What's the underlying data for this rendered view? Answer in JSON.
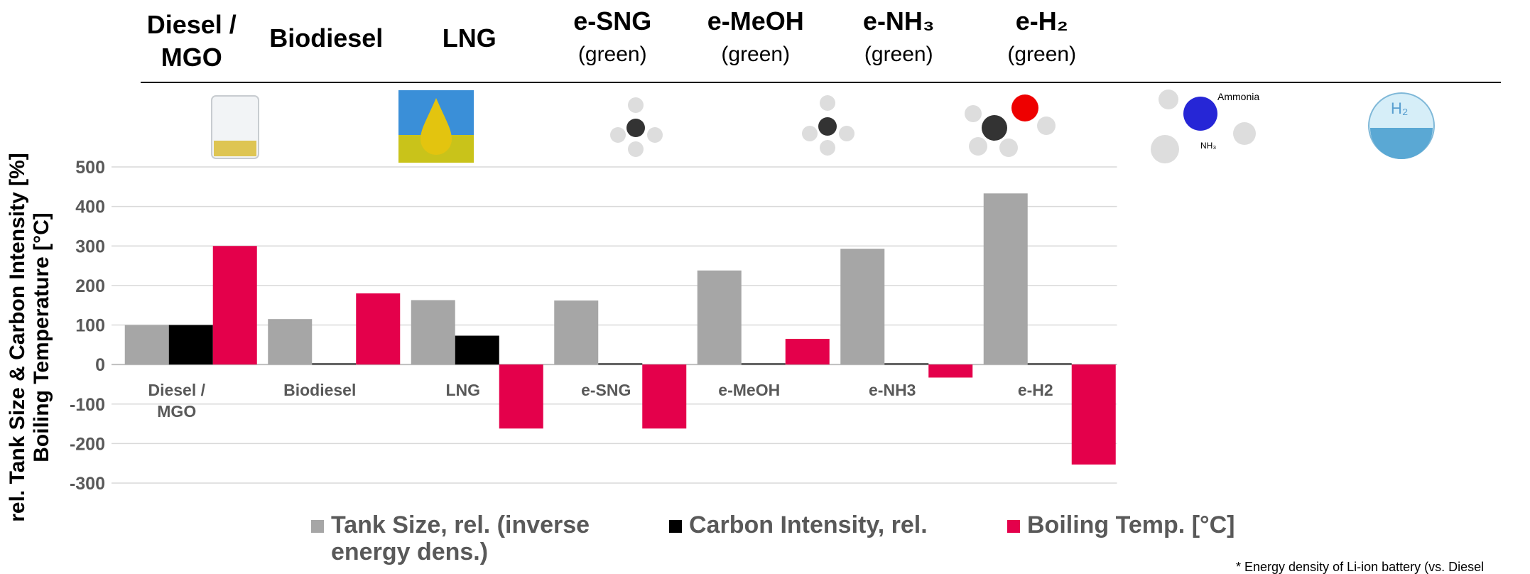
{
  "chart_data": {
    "type": "bar",
    "headers": [
      {
        "title": "Diesel / MGO"
      },
      {
        "title": "Biodiesel"
      },
      {
        "title": "LNG"
      },
      {
        "title": "e-SNG",
        "subtitle": "(green)"
      },
      {
        "title": "e-MeOH",
        "subtitle": "(green)"
      },
      {
        "title": "e-NH₃",
        "subtitle": "(green)"
      },
      {
        "title": "e-H₂",
        "subtitle": "(green)"
      }
    ],
    "icon_labels": [
      "Ammonia",
      "NH₃",
      "H₂"
    ],
    "y_label": [
      "rel. Tank Size & Carbon Intensity [%]",
      "Boiling Temperature [°C]"
    ],
    "categories": [
      "Diesel / MGO",
      "Biodiesel",
      "LNG",
      "e-SNG",
      "e-MeOH",
      "e-NH3",
      "e-H2"
    ],
    "series": [
      {
        "name": "Tank Size, rel. (inverse energy dens.)",
        "color": "#a6a6a6",
        "values": [
          100,
          115,
          163,
          162,
          238,
          293,
          433
        ]
      },
      {
        "name": "Carbon Intensity, rel.",
        "color": "#000000",
        "values": [
          100,
          3,
          73,
          3,
          3,
          3,
          3
        ]
      },
      {
        "name": "Boiling Temp. [°C]",
        "color": "#e4004b",
        "values": [
          300,
          180,
          -162,
          -162,
          65,
          -33,
          -253
        ]
      }
    ],
    "ylim": [
      -300,
      500
    ],
    "yticks": [
      -300,
      -200,
      -100,
      0,
      100,
      200,
      300,
      400,
      500
    ],
    "grid": true,
    "footnote": "* Energy density of Li-ion battery (vs. Diesel"
  }
}
